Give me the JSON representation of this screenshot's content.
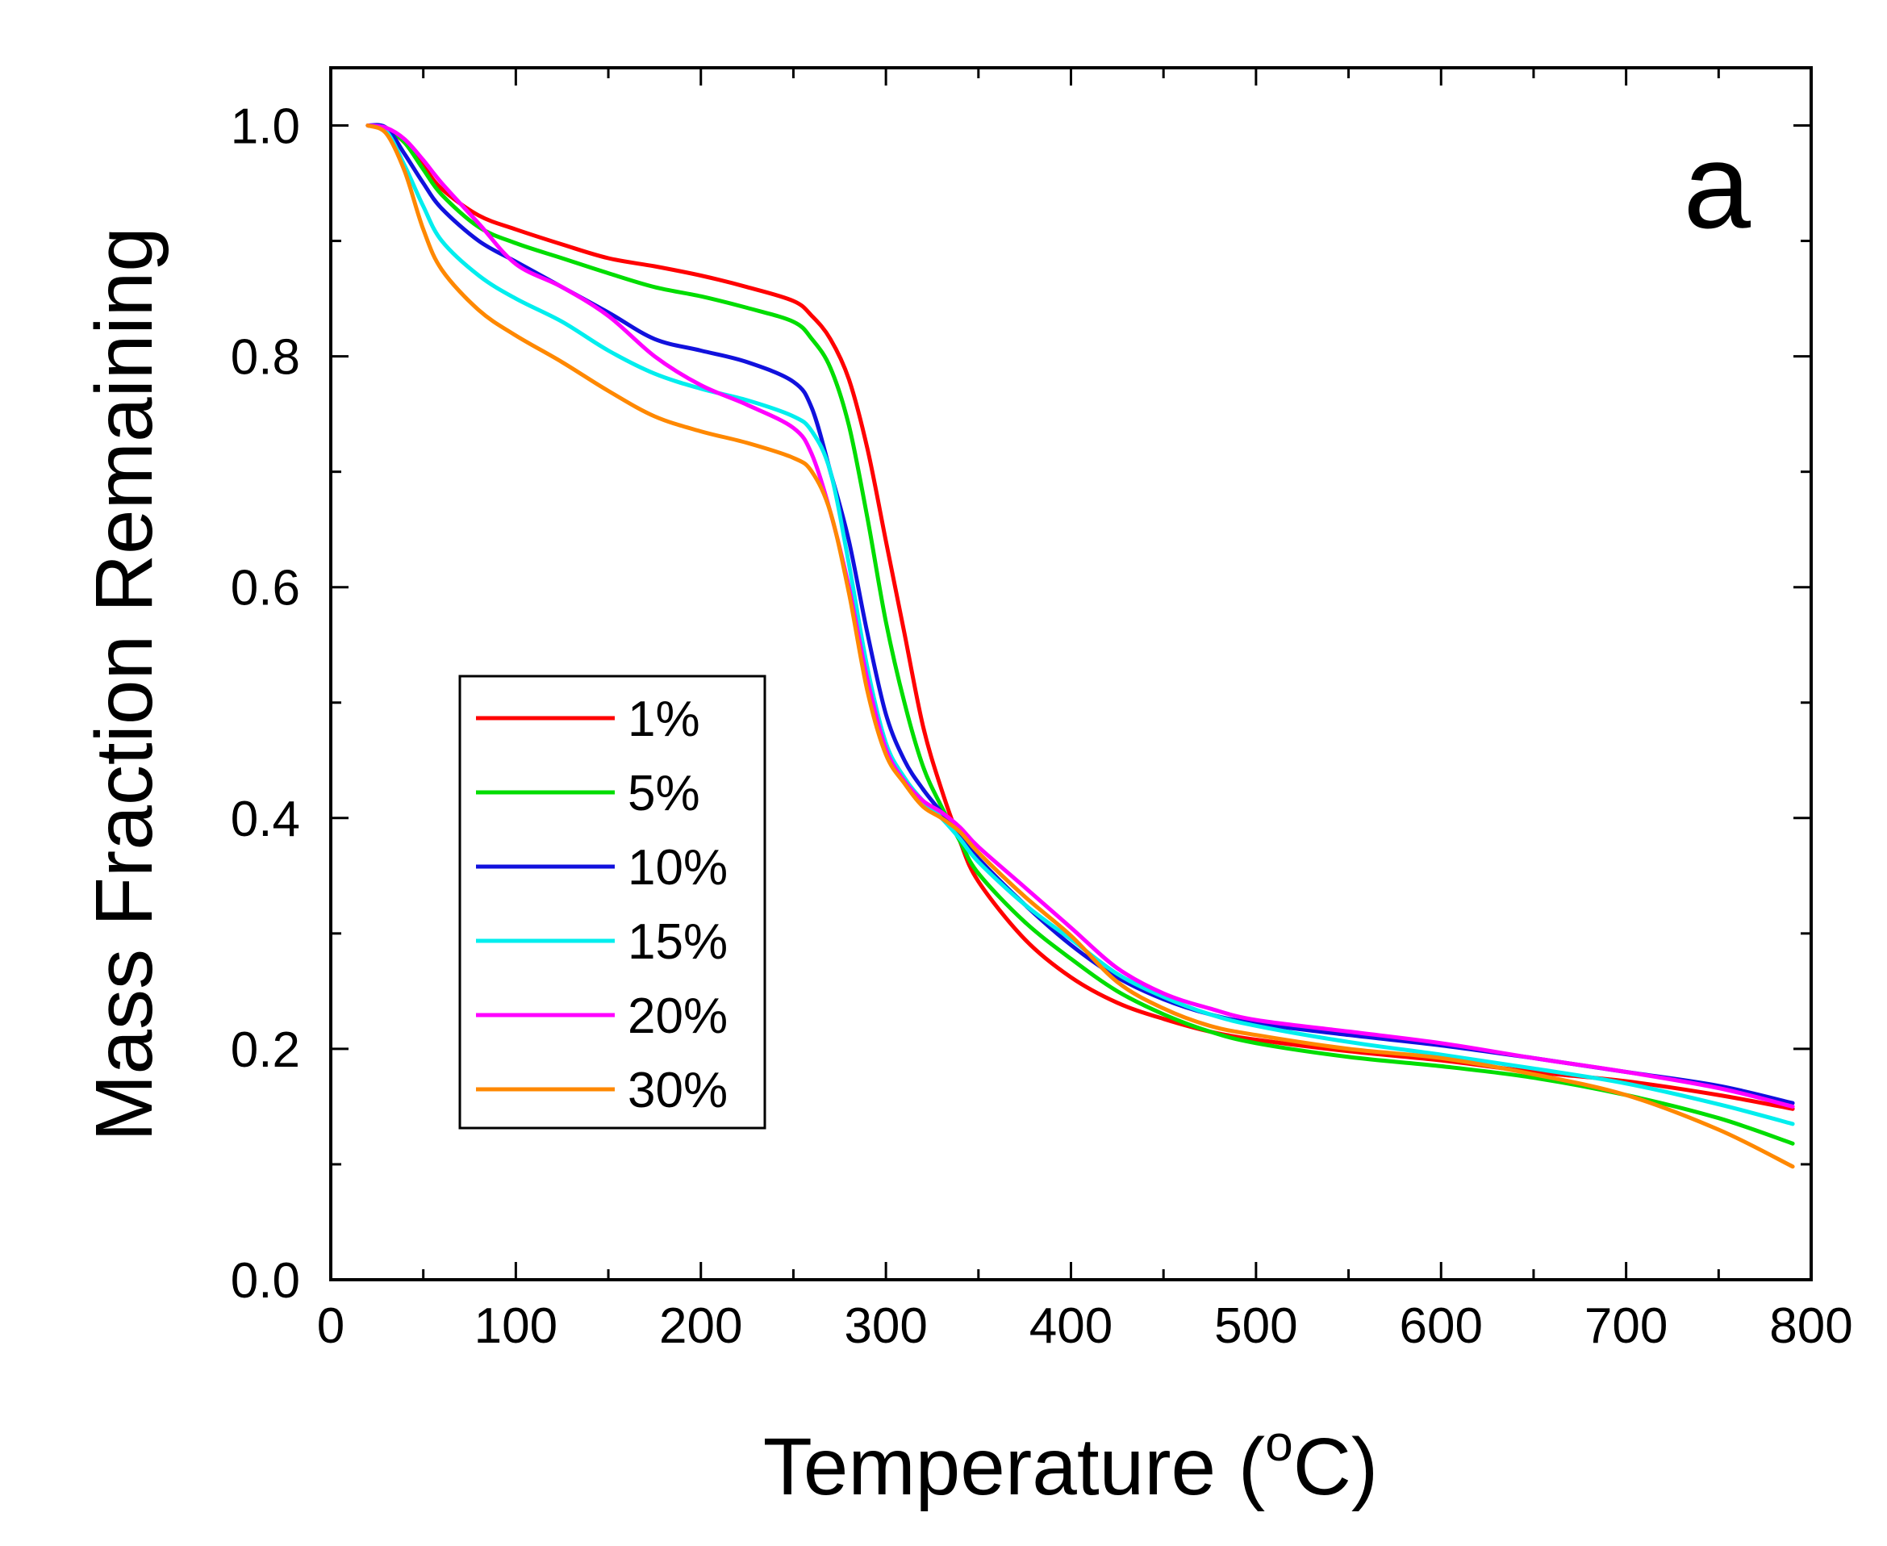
{
  "chart_data": {
    "type": "line",
    "title": "",
    "panel_label": "a",
    "xlabel": "Temperature (",
    "xlabel_degree": "o",
    "xlabel_unit": "C)",
    "ylabel": "Mass Fraction Remaining",
    "xlim": [
      0,
      800
    ],
    "ylim": [
      0,
      1.05
    ],
    "xticks": [
      0,
      100,
      200,
      300,
      400,
      500,
      600,
      700,
      800
    ],
    "xtick_labels": [
      "0",
      "100",
      "200",
      "300",
      "400",
      "500",
      "600",
      "700",
      "800"
    ],
    "yticks": [
      0,
      0.2,
      0.4,
      0.6,
      0.8,
      1.0
    ],
    "ytick_labels": [
      "0.0",
      "0.2",
      "0.4",
      "0.6",
      "0.8",
      "1.0"
    ],
    "legend_position": "center-left",
    "grid": false,
    "series": [
      {
        "name": "1%",
        "color": "#ff0000",
        "x": [
          20,
          30,
          40,
          50,
          60,
          80,
          100,
          125,
          150,
          175,
          200,
          225,
          250,
          260,
          270,
          280,
          290,
          300,
          310,
          320,
          330,
          340,
          350,
          375,
          400,
          425,
          450,
          475,
          500,
          550,
          600,
          650,
          700,
          750,
          790
        ],
        "y": [
          1.0,
          0.997,
          0.985,
          0.965,
          0.945,
          0.922,
          0.91,
          0.897,
          0.885,
          0.878,
          0.87,
          0.86,
          0.848,
          0.835,
          0.815,
          0.78,
          0.72,
          0.64,
          0.56,
          0.48,
          0.425,
          0.38,
          0.345,
          0.295,
          0.262,
          0.24,
          0.226,
          0.215,
          0.208,
          0.198,
          0.19,
          0.18,
          0.172,
          0.16,
          0.148
        ]
      },
      {
        "name": "5%",
        "color": "#00dd00",
        "x": [
          20,
          30,
          40,
          50,
          60,
          80,
          100,
          125,
          150,
          175,
          200,
          225,
          250,
          260,
          270,
          280,
          290,
          300,
          310,
          320,
          330,
          340,
          350,
          375,
          400,
          425,
          450,
          475,
          500,
          550,
          600,
          650,
          700,
          750,
          790
        ],
        "y": [
          1.0,
          0.998,
          0.985,
          0.962,
          0.94,
          0.912,
          0.898,
          0.885,
          0.872,
          0.86,
          0.852,
          0.842,
          0.83,
          0.815,
          0.79,
          0.74,
          0.66,
          0.57,
          0.5,
          0.445,
          0.41,
          0.38,
          0.352,
          0.31,
          0.278,
          0.25,
          0.23,
          0.215,
          0.205,
          0.193,
          0.185,
          0.175,
          0.16,
          0.14,
          0.118
        ]
      },
      {
        "name": "10%",
        "color": "#1111dd",
        "x": [
          20,
          30,
          40,
          50,
          60,
          80,
          100,
          125,
          150,
          175,
          200,
          225,
          250,
          260,
          270,
          280,
          290,
          300,
          310,
          320,
          330,
          340,
          350,
          375,
          400,
          425,
          450,
          475,
          500,
          550,
          600,
          650,
          700,
          750,
          790
        ],
        "y": [
          1.0,
          0.998,
          0.975,
          0.95,
          0.928,
          0.9,
          0.882,
          0.86,
          0.838,
          0.815,
          0.805,
          0.795,
          0.778,
          0.755,
          0.7,
          0.64,
          0.56,
          0.49,
          0.45,
          0.425,
          0.405,
          0.385,
          0.365,
          0.325,
          0.29,
          0.262,
          0.243,
          0.23,
          0.222,
          0.212,
          0.203,
          0.192,
          0.18,
          0.168,
          0.153
        ]
      },
      {
        "name": "15%",
        "color": "#00eeee",
        "x": [
          20,
          30,
          40,
          50,
          60,
          80,
          100,
          125,
          150,
          175,
          200,
          225,
          250,
          260,
          270,
          280,
          290,
          300,
          310,
          320,
          330,
          340,
          350,
          375,
          400,
          425,
          450,
          475,
          500,
          550,
          600,
          650,
          700,
          750,
          790
        ],
        "y": [
          1.0,
          0.995,
          0.965,
          0.93,
          0.9,
          0.87,
          0.85,
          0.83,
          0.805,
          0.785,
          0.772,
          0.762,
          0.748,
          0.735,
          0.7,
          0.62,
          0.53,
          0.465,
          0.435,
          0.415,
          0.4,
          0.382,
          0.362,
          0.325,
          0.295,
          0.265,
          0.245,
          0.23,
          0.22,
          0.206,
          0.195,
          0.183,
          0.17,
          0.152,
          0.135
        ]
      },
      {
        "name": "20%",
        "color": "#ff00ff",
        "x": [
          20,
          30,
          40,
          50,
          60,
          80,
          100,
          125,
          150,
          175,
          200,
          225,
          250,
          260,
          270,
          280,
          290,
          300,
          310,
          320,
          330,
          340,
          350,
          375,
          400,
          425,
          450,
          475,
          500,
          550,
          600,
          650,
          700,
          750,
          790
        ],
        "y": [
          1.0,
          0.998,
          0.988,
          0.97,
          0.95,
          0.915,
          0.88,
          0.86,
          0.835,
          0.8,
          0.775,
          0.758,
          0.738,
          0.715,
          0.665,
          0.6,
          0.52,
          0.46,
          0.432,
          0.415,
          0.405,
          0.392,
          0.375,
          0.34,
          0.305,
          0.27,
          0.248,
          0.235,
          0.225,
          0.215,
          0.205,
          0.192,
          0.18,
          0.166,
          0.15
        ]
      },
      {
        "name": "30%",
        "color": "#ff8800",
        "x": [
          20,
          30,
          40,
          50,
          60,
          80,
          100,
          125,
          150,
          175,
          200,
          225,
          250,
          260,
          270,
          280,
          290,
          300,
          310,
          320,
          330,
          340,
          350,
          375,
          400,
          425,
          450,
          475,
          500,
          550,
          600,
          650,
          700,
          750,
          790
        ],
        "y": [
          1.0,
          0.993,
          0.96,
          0.91,
          0.875,
          0.84,
          0.818,
          0.795,
          0.77,
          0.748,
          0.735,
          0.725,
          0.712,
          0.7,
          0.665,
          0.595,
          0.51,
          0.455,
          0.43,
          0.41,
          0.4,
          0.388,
          0.37,
          0.332,
          0.298,
          0.258,
          0.235,
          0.22,
          0.212,
          0.2,
          0.192,
          0.178,
          0.16,
          0.13,
          0.098
        ]
      }
    ]
  }
}
